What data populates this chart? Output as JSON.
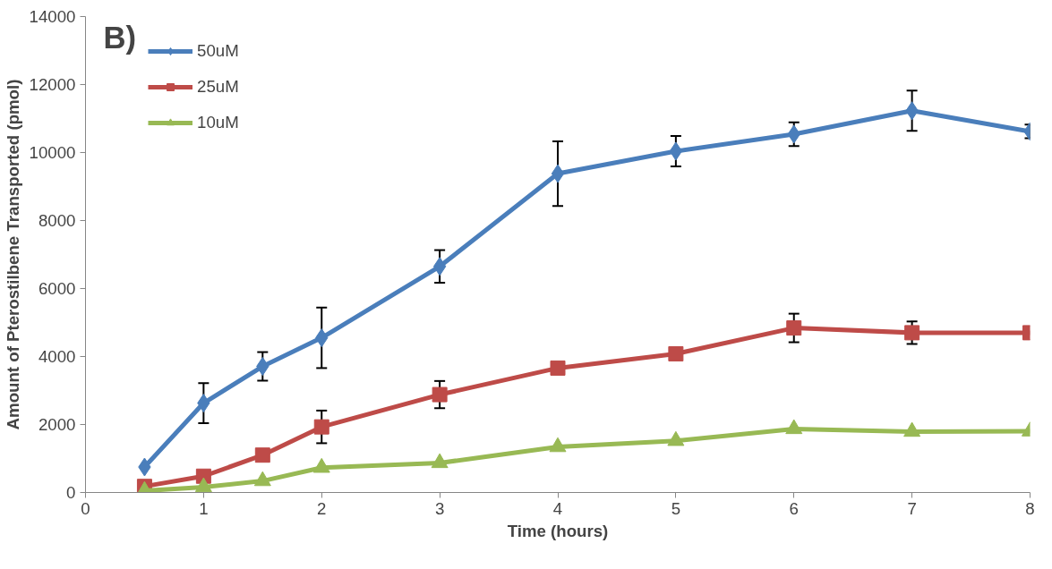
{
  "chart_data": {
    "type": "line",
    "annotations": [
      "B)"
    ],
    "xlabel": "Time (hours)",
    "ylabel": "Amount of Pterostilbene Transported (pmol)",
    "x": [
      0.5,
      1,
      1.5,
      2,
      3,
      4,
      5,
      6,
      7,
      8
    ],
    "series": [
      {
        "name": "50uM",
        "color": "#4a7ebb",
        "marker": "diamond",
        "values": [
          750,
          2630,
          3710,
          4550,
          6650,
          9380,
          10040,
          10540,
          11230,
          10620
        ],
        "errors": [
          null,
          590,
          420,
          890,
          480,
          950,
          450,
          350,
          590,
          200
        ]
      },
      {
        "name": "25uM",
        "color": "#be4b48",
        "marker": "square",
        "values": [
          180,
          480,
          1100,
          1930,
          2880,
          3660,
          4080,
          4840,
          4700,
          4700
        ],
        "errors": [
          null,
          null,
          null,
          480,
          400,
          null,
          null,
          420,
          330,
          null
        ]
      },
      {
        "name": "10uM",
        "color": "#98b954",
        "marker": "triangle",
        "values": [
          50,
          160,
          340,
          730,
          870,
          1340,
          1520,
          1870,
          1790,
          1800
        ],
        "errors": [
          null,
          null,
          null,
          null,
          null,
          null,
          null,
          null,
          null,
          null
        ]
      }
    ],
    "xlim": [
      0,
      8
    ],
    "xticks": [
      0,
      1,
      2,
      3,
      4,
      5,
      6,
      7,
      8
    ],
    "ylim": [
      0,
      14000
    ],
    "yticks": [
      0,
      2000,
      4000,
      6000,
      8000,
      10000,
      12000,
      14000
    ],
    "grid": false,
    "legend": "top left",
    "line_style": "solid"
  }
}
